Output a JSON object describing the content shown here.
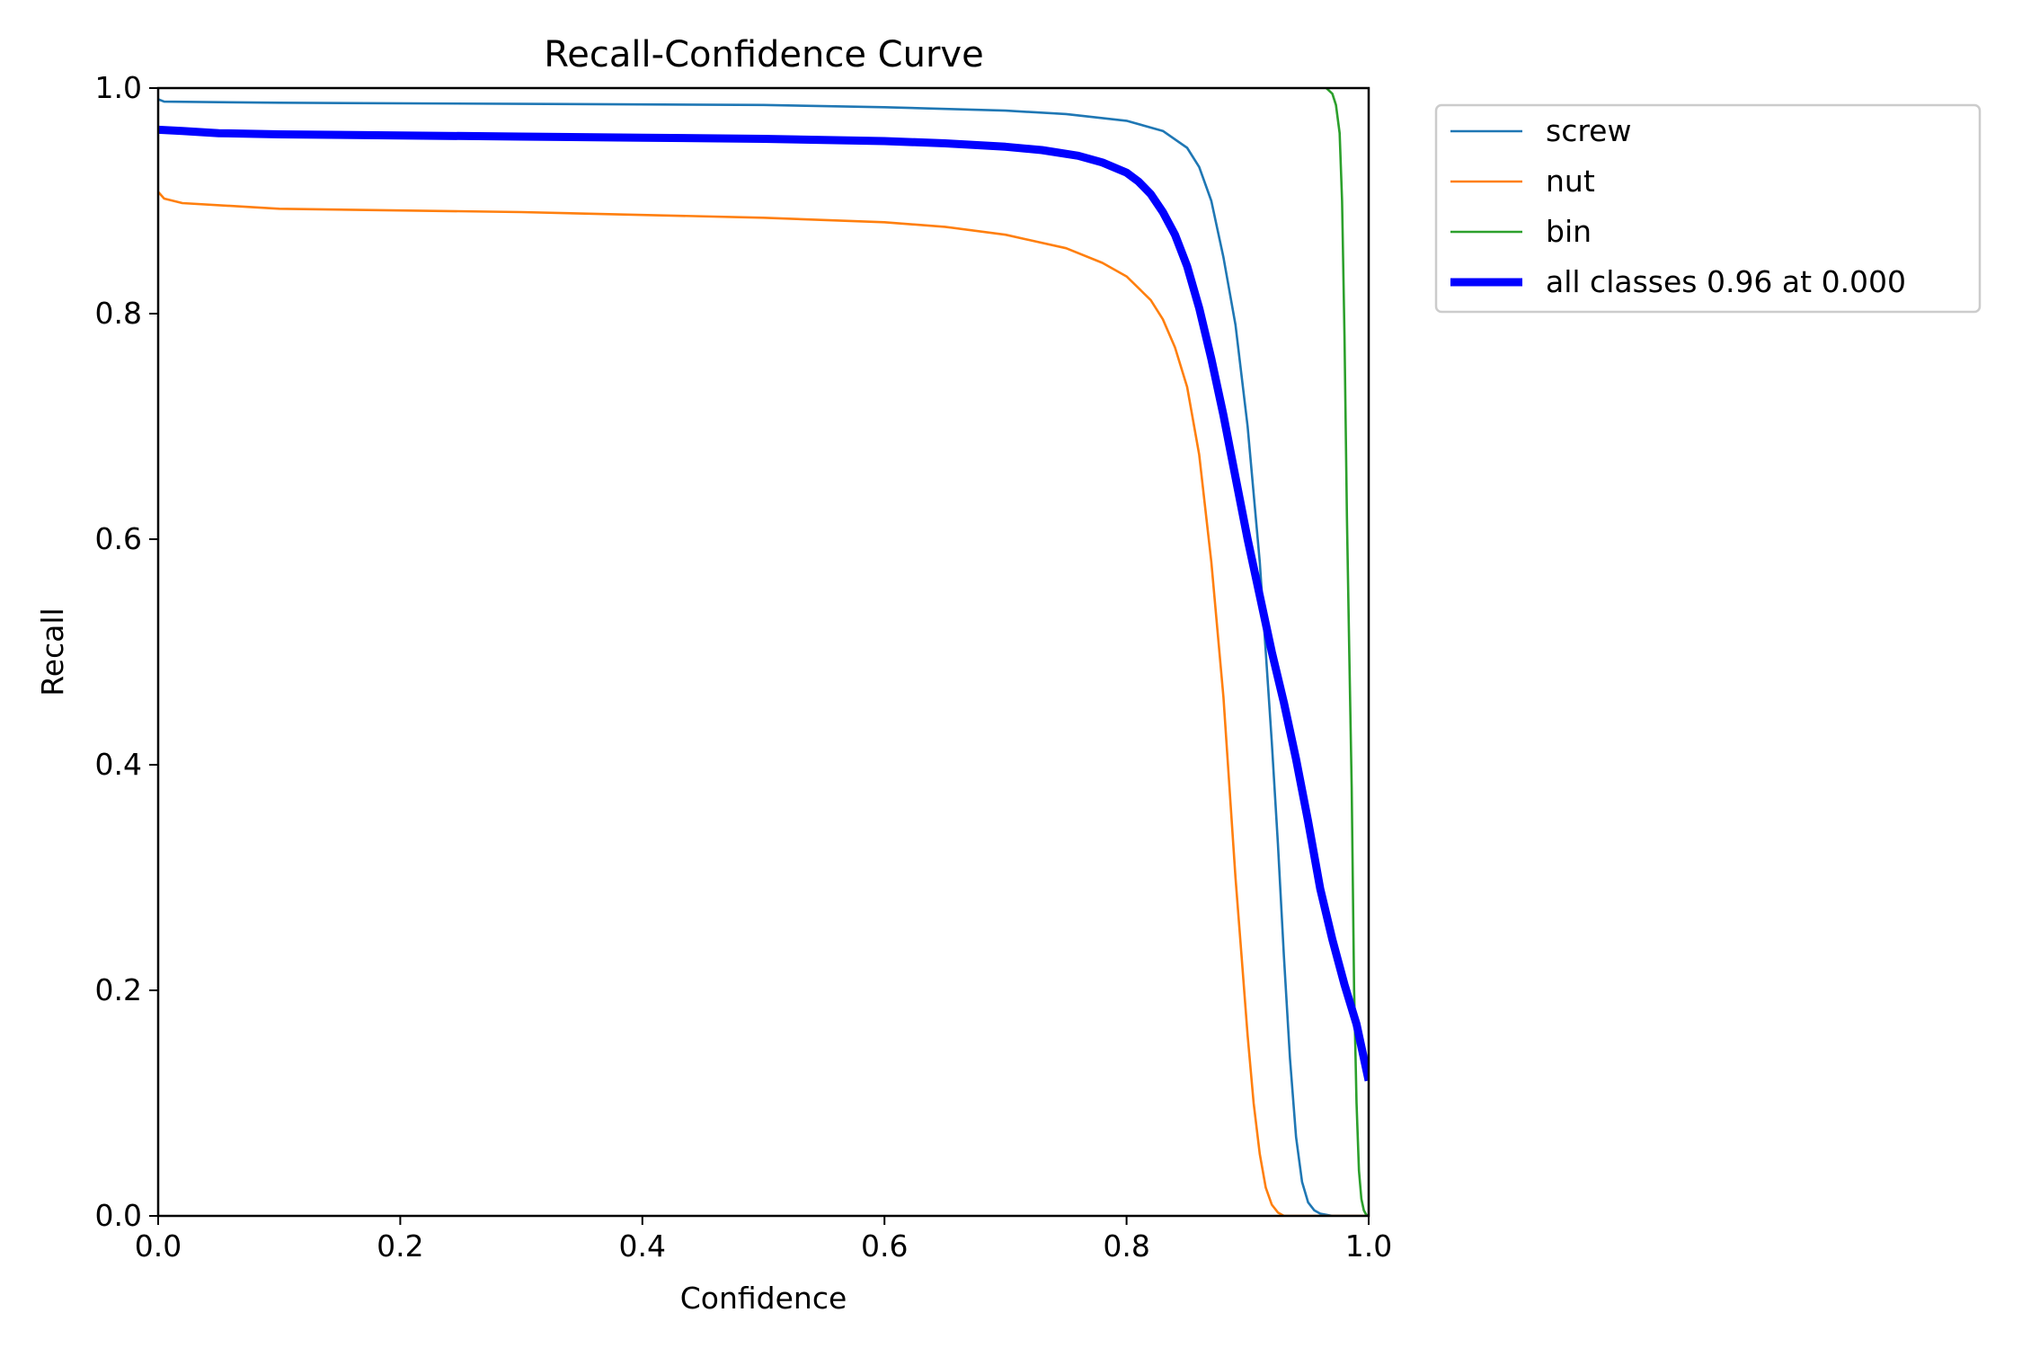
{
  "chart_data": {
    "type": "line",
    "title": "Recall-Confidence Curve",
    "xlabel": "Confidence",
    "ylabel": "Recall",
    "xlim": [
      0.0,
      1.0
    ],
    "ylim": [
      0.0,
      1.0
    ],
    "xticks": [
      "0.0",
      "0.2",
      "0.4",
      "0.6",
      "0.8",
      "1.0"
    ],
    "yticks": [
      "0.0",
      "0.2",
      "0.4",
      "0.6",
      "0.8",
      "1.0"
    ],
    "grid": false,
    "legend_position": "outside-top-right",
    "series": [
      {
        "name": "screw",
        "color": "#1f77b4",
        "width": "thin",
        "x": [
          0.0,
          0.005,
          0.1,
          0.3,
          0.5,
          0.6,
          0.7,
          0.75,
          0.8,
          0.83,
          0.85,
          0.86,
          0.87,
          0.88,
          0.89,
          0.9,
          0.91,
          0.92,
          0.925,
          0.93,
          0.935,
          0.94,
          0.945,
          0.95,
          0.955,
          0.96,
          0.97,
          0.98,
          1.0
        ],
        "y": [
          0.99,
          0.988,
          0.987,
          0.986,
          0.985,
          0.983,
          0.98,
          0.977,
          0.971,
          0.962,
          0.947,
          0.93,
          0.9,
          0.85,
          0.79,
          0.7,
          0.58,
          0.42,
          0.33,
          0.23,
          0.14,
          0.07,
          0.03,
          0.012,
          0.005,
          0.002,
          0.0,
          0.0,
          0.0
        ]
      },
      {
        "name": "nut",
        "color": "#ff7f0e",
        "width": "thin",
        "x": [
          0.0,
          0.005,
          0.02,
          0.1,
          0.3,
          0.5,
          0.6,
          0.65,
          0.7,
          0.75,
          0.78,
          0.8,
          0.82,
          0.83,
          0.84,
          0.85,
          0.86,
          0.87,
          0.88,
          0.885,
          0.89,
          0.895,
          0.9,
          0.905,
          0.91,
          0.915,
          0.92,
          0.925,
          0.93,
          0.95,
          1.0
        ],
        "y": [
          0.908,
          0.902,
          0.898,
          0.893,
          0.89,
          0.885,
          0.881,
          0.877,
          0.87,
          0.858,
          0.845,
          0.833,
          0.812,
          0.795,
          0.77,
          0.735,
          0.675,
          0.58,
          0.46,
          0.38,
          0.3,
          0.23,
          0.16,
          0.1,
          0.055,
          0.025,
          0.01,
          0.003,
          0.0,
          0.0,
          0.0
        ]
      },
      {
        "name": "bin",
        "color": "#2ca02c",
        "width": "thin",
        "x": [
          0.965,
          0.97,
          0.973,
          0.976,
          0.978,
          0.98,
          0.982,
          0.984,
          0.986,
          0.988,
          0.99,
          0.992,
          0.994,
          0.996,
          0.998,
          1.0
        ],
        "y": [
          1.0,
          0.995,
          0.985,
          0.96,
          0.9,
          0.78,
          0.62,
          0.5,
          0.38,
          0.2,
          0.1,
          0.04,
          0.015,
          0.005,
          0.001,
          0.0
        ]
      },
      {
        "name": "all classes 0.96 at 0.000",
        "color": "#0000ff",
        "width": "thick",
        "x": [
          0.0,
          0.02,
          0.05,
          0.1,
          0.2,
          0.3,
          0.4,
          0.5,
          0.6,
          0.65,
          0.7,
          0.73,
          0.76,
          0.78,
          0.8,
          0.81,
          0.82,
          0.83,
          0.84,
          0.85,
          0.86,
          0.87,
          0.88,
          0.89,
          0.9,
          0.91,
          0.92,
          0.93,
          0.94,
          0.95,
          0.96,
          0.97,
          0.98,
          0.99,
          1.0
        ],
        "y": [
          0.963,
          0.962,
          0.96,
          0.959,
          0.958,
          0.957,
          0.956,
          0.955,
          0.953,
          0.951,
          0.948,
          0.945,
          0.94,
          0.934,
          0.925,
          0.917,
          0.906,
          0.89,
          0.87,
          0.842,
          0.805,
          0.76,
          0.71,
          0.655,
          0.6,
          0.55,
          0.5,
          0.455,
          0.405,
          0.35,
          0.29,
          0.245,
          0.205,
          0.17,
          0.12
        ]
      }
    ]
  }
}
